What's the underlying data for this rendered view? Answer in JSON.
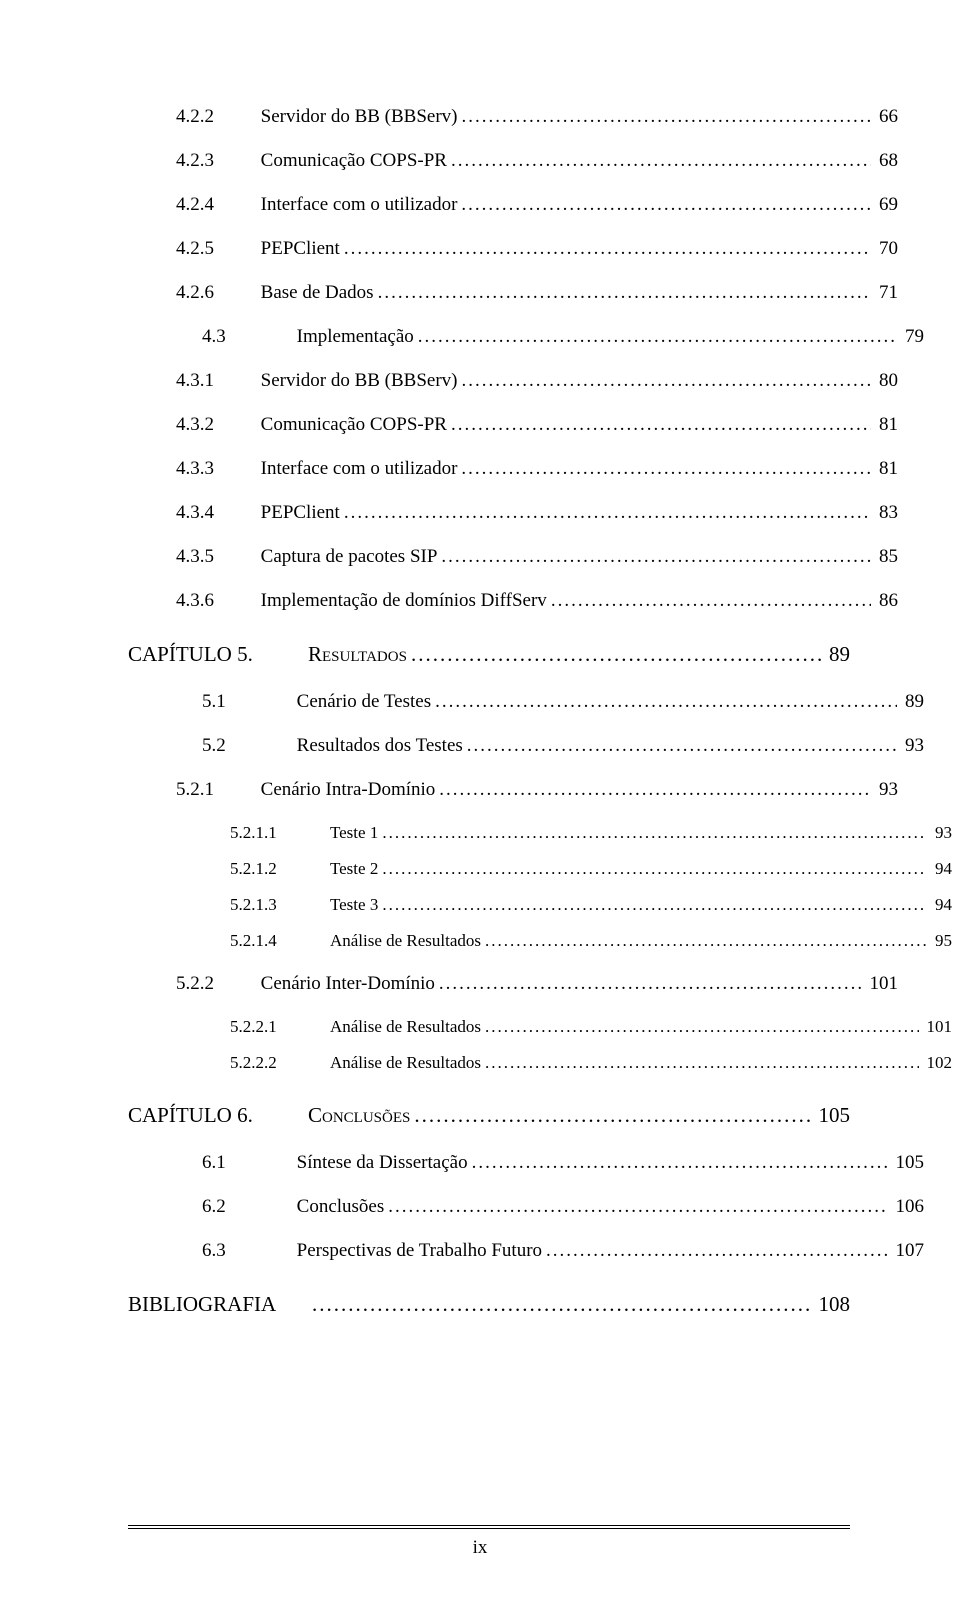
{
  "page_number_label": "ix",
  "toc": [
    {
      "level": "lvl2",
      "num": "4.2.2",
      "title": "Servidor do BB (BBServ)",
      "page": "66"
    },
    {
      "level": "lvl2",
      "num": "4.2.3",
      "title": "Comunicação COPS-PR",
      "page": "68"
    },
    {
      "level": "lvl2",
      "num": "4.2.4",
      "title": "Interface com o utilizador",
      "page": "69"
    },
    {
      "level": "lvl2",
      "num": "4.2.5",
      "title": "PEPClient",
      "page": "70"
    },
    {
      "level": "lvl2",
      "num": "4.2.6",
      "title": "Base de Dados",
      "page": "71"
    },
    {
      "level": "lvl3",
      "num": "4.3",
      "title": "Implementação",
      "page": "79"
    },
    {
      "level": "lvl2",
      "num": "4.3.1",
      "title": "Servidor do BB (BBServ)",
      "page": "80"
    },
    {
      "level": "lvl2",
      "num": "4.3.2",
      "title": "Comunicação COPS-PR",
      "page": "81"
    },
    {
      "level": "lvl2",
      "num": "4.3.3",
      "title": "Interface com o utilizador",
      "page": "81"
    },
    {
      "level": "lvl2",
      "num": "4.3.4",
      "title": "PEPClient",
      "page": "83"
    },
    {
      "level": "lvl2",
      "num": "4.3.5",
      "title": "Captura de pacotes SIP",
      "page": "85"
    },
    {
      "level": "lvl2",
      "num": "4.3.6",
      "title": "Implementação de domínios DiffServ",
      "page": "86"
    },
    {
      "level": "lvl1",
      "extra_class": "chapter",
      "num": "CAPÍTULO 5.",
      "title": "Resultados",
      "page": "89"
    },
    {
      "level": "lvl3",
      "num": "5.1",
      "title": "Cenário de Testes",
      "page": "89"
    },
    {
      "level": "lvl3",
      "num": "5.2",
      "title": "Resultados dos Testes",
      "page": "93"
    },
    {
      "level": "lvl2",
      "num": "5.2.1",
      "title": "Cenário Intra-Domínio",
      "page": "93"
    },
    {
      "level": "lvl4",
      "num": "5.2.1.1",
      "title": "Teste 1",
      "page": "93"
    },
    {
      "level": "lvl4",
      "num": "5.2.1.2",
      "title": "Teste 2",
      "page": "94"
    },
    {
      "level": "lvl4",
      "num": "5.2.1.3",
      "title": "Teste 3",
      "page": "94"
    },
    {
      "level": "lvl4",
      "num": "5.2.1.4",
      "title": "Análise de Resultados",
      "page": "95"
    },
    {
      "level": "lvl2",
      "num": "5.2.2",
      "title": "Cenário Inter-Domínio",
      "page": "101"
    },
    {
      "level": "lvl4",
      "num": "5.2.2.1",
      "title": "Análise de Resultados",
      "page": "101"
    },
    {
      "level": "lvl4",
      "num": "5.2.2.2",
      "title": "Análise de Resultados",
      "page": "102"
    },
    {
      "level": "lvl1",
      "extra_class": "chapter",
      "num": "CAPÍTULO 6.",
      "title": "Conclusões",
      "page": "105"
    },
    {
      "level": "lvl3",
      "num": "6.1",
      "title": "Síntese da Dissertação",
      "page": "105"
    },
    {
      "level": "lvl3",
      "num": "6.2",
      "title": "Conclusões",
      "page": "106"
    },
    {
      "level": "lvl3",
      "num": "6.3",
      "title": "Perspectivas de Trabalho Futuro",
      "page": "107"
    },
    {
      "level": "lvl1",
      "extra_class": "biblio",
      "num": "BIBLIOGRAFIA",
      "title": "",
      "page": "108"
    }
  ]
}
